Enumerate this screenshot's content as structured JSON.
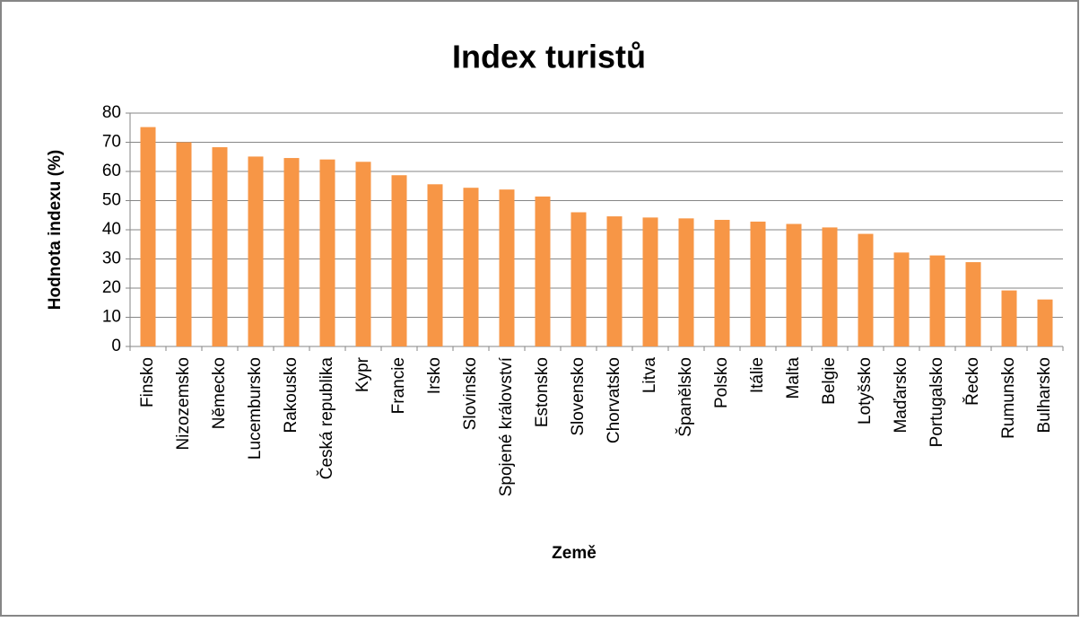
{
  "chart_data": {
    "type": "bar",
    "title": "Index turistů",
    "x_label": "Země",
    "y_label": "Hodnota indexu (%)",
    "categories": [
      "Finsko",
      "Nizozemsko",
      "Německo",
      "Lucembursko",
      "Rakousko",
      "Česká republika",
      "Kypr",
      "Francie",
      "Irsko",
      "Slovinsko",
      "Spojené království",
      "Estonsko",
      "Slovensko",
      "Chorvatsko",
      "Litva",
      "Španělsko",
      "Polsko",
      "Itálie",
      "Malta",
      "Belgie",
      "Lotyšsko",
      "Maďarsko",
      "Portugalsko",
      "Řecko",
      "Rumunsko",
      "Bulharsko"
    ],
    "values": [
      75.2,
      70,
      68.3,
      65.1,
      64.6,
      64.1,
      63.3,
      58.7,
      55.6,
      54.4,
      53.8,
      51.4,
      46,
      44.6,
      44.2,
      43.9,
      43.4,
      42.8,
      42,
      40.8,
      38.6,
      32.2,
      31.2,
      28.9,
      19.2,
      16.1
    ],
    "color": "#f79646",
    "ylim": [
      0,
      80
    ],
    "yticks": [
      0,
      10,
      20,
      30,
      40,
      50,
      60,
      70,
      80
    ],
    "grid": true
  }
}
